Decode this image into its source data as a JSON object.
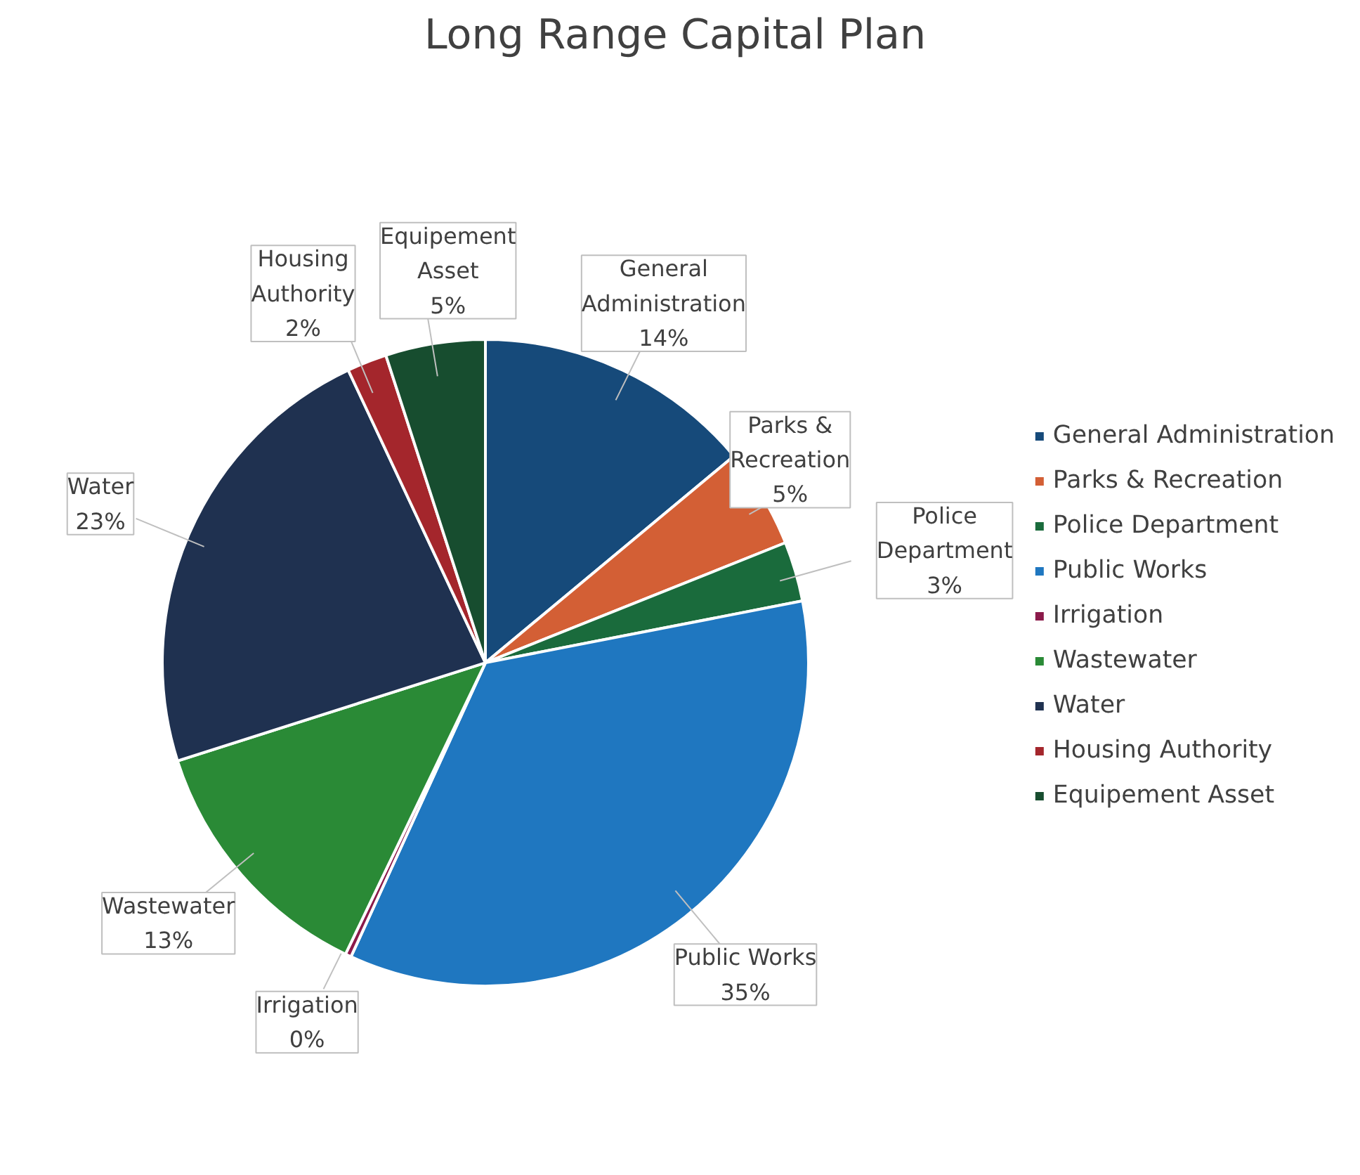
{
  "chart_data": {
    "type": "pie",
    "title": "Long Range Capital Plan",
    "categories": [
      "General Administration",
      "Parks & Recreation",
      "Police Department",
      "Public Works",
      "Irrigation",
      "Wastewater",
      "Water",
      "Housing Authority",
      "Equipement Asset"
    ],
    "values": [
      14,
      5,
      3,
      35,
      0.3,
      13,
      23,
      2,
      5
    ],
    "value_labels": [
      "14%",
      "5%",
      "3%",
      "35%",
      "0%",
      "13%",
      "23%",
      "2%",
      "5%"
    ],
    "colors": [
      "#164a7a",
      "#d35f35",
      "#1a6b3c",
      "#1f77c0",
      "#8b1a4a",
      "#2a8a36",
      "#1f3150",
      "#a4262c",
      "#174d2f"
    ],
    "legend": "right"
  }
}
